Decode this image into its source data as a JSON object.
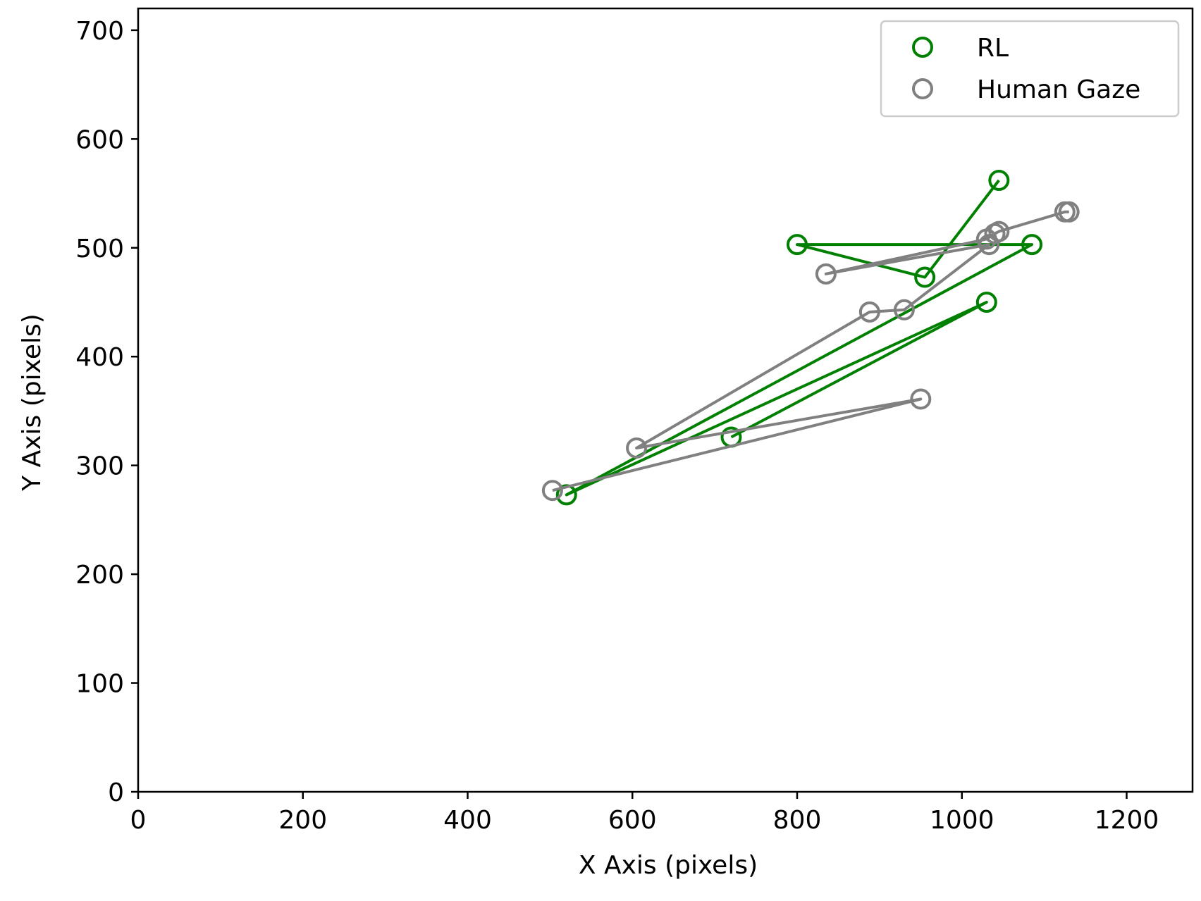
{
  "chart_data": {
    "type": "scatter",
    "title": "",
    "xlabel": "X Axis (pixels)",
    "ylabel": "Y Axis (pixels)",
    "xlim": [
      0,
      1280
    ],
    "ylim": [
      0,
      720
    ],
    "xticks": [
      0,
      200,
      400,
      600,
      800,
      1000,
      1200
    ],
    "yticks": [
      0,
      100,
      200,
      300,
      400,
      500,
      600,
      700
    ],
    "grid": false,
    "legend_position": "top-right",
    "series": [
      {
        "name": "RL",
        "color": "#008000",
        "marker": "open-circle",
        "connected": true,
        "points": [
          [
            1045,
            562
          ],
          [
            955,
            473
          ],
          [
            800,
            503
          ],
          [
            1085,
            503
          ],
          [
            520,
            273
          ],
          [
            1030,
            450
          ],
          [
            720,
            326
          ]
        ]
      },
      {
        "name": "Human Gaze",
        "color": "#808080",
        "marker": "open-circle",
        "connected": true,
        "points": [
          [
            1130,
            533
          ],
          [
            1125,
            533
          ],
          [
            1045,
            515
          ],
          [
            1040,
            513
          ],
          [
            1030,
            508
          ],
          [
            835,
            476
          ],
          [
            1033,
            503
          ],
          [
            930,
            443
          ],
          [
            888,
            441
          ],
          [
            605,
            316
          ],
          [
            950,
            361
          ],
          [
            503,
            277
          ]
        ]
      }
    ]
  }
}
